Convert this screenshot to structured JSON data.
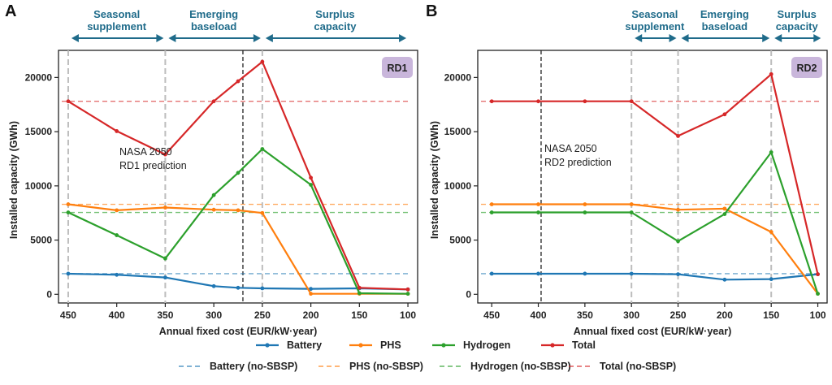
{
  "legend": [
    {
      "key": "battery",
      "label": "Battery"
    },
    {
      "key": "phs",
      "label": "PHS"
    },
    {
      "key": "hydrogen",
      "label": "Hydrogen"
    },
    {
      "key": "total",
      "label": "Total"
    },
    {
      "key": "battery_ref",
      "label": "Battery (no-SBSP)"
    },
    {
      "key": "phs_ref",
      "label": "PHS (no-SBSP)"
    },
    {
      "key": "hydrogen_ref",
      "label": "Hydrogen (no-SBSP)"
    },
    {
      "key": "total_ref",
      "label": "Total (no-SBSP)"
    }
  ],
  "colors": {
    "battery": "#1f77b4",
    "phs": "#ff7f0e",
    "hydrogen": "#2ca02c",
    "total": "#d62728",
    "phase": "#1f6b8a",
    "badge": "#c9b6db"
  },
  "chart_data": [
    {
      "type": "line",
      "panel": "A",
      "badge": "RD1",
      "xlabel": "Annual fixed cost (EUR/kW·year)",
      "ylabel": "Installed capacity (GWh)",
      "x": [
        450,
        400,
        350,
        300,
        275,
        250,
        200,
        150,
        100
      ],
      "xlim": [
        460,
        90
      ],
      "ylim": [
        -800,
        22500
      ],
      "xticks": [
        450,
        400,
        350,
        300,
        250,
        200,
        150,
        100
      ],
      "yticks": [
        0,
        5000,
        10000,
        15000,
        20000
      ],
      "grey_lines": [
        450,
        350,
        250
      ],
      "prediction": {
        "x": 270,
        "label": [
          "NASA 2050",
          "RD1 prediction"
        ]
      },
      "phases": [
        {
          "label": [
            "Seasonal",
            "supplement"
          ],
          "from": 450,
          "to": 350
        },
        {
          "label": [
            "Emerging",
            "baseload"
          ],
          "from": 350,
          "to": 250
        },
        {
          "label": [
            "Surplus",
            "capacity"
          ],
          "from": 250,
          "to": 100
        }
      ],
      "series": [
        {
          "key": "battery",
          "name": "Battery",
          "values": [
            1900,
            1800,
            1550,
            750,
            600,
            550,
            500,
            550,
            450
          ]
        },
        {
          "key": "phs",
          "name": "PHS",
          "values": [
            8300,
            7750,
            8000,
            7800,
            7750,
            7500,
            50,
            50,
            50
          ]
        },
        {
          "key": "hydrogen",
          "name": "Hydrogen",
          "values": [
            7550,
            5450,
            3300,
            9150,
            11200,
            13400,
            10100,
            100,
            50
          ]
        },
        {
          "key": "total",
          "name": "Total",
          "values": [
            17800,
            15050,
            12900,
            17800,
            19650,
            21450,
            10750,
            600,
            450
          ]
        }
      ],
      "reference": {
        "battery": 1900,
        "phs": 8300,
        "hydrogen": 7550,
        "total": 17800
      }
    },
    {
      "type": "line",
      "panel": "B",
      "badge": "RD2",
      "xlabel": "Annual fixed cost (EUR/kW·year)",
      "ylabel": "Installed capacity (GWh)",
      "x": [
        450,
        400,
        350,
        300,
        250,
        200,
        150,
        100
      ],
      "xlim": [
        465,
        90
      ],
      "ylim": [
        -800,
        22500
      ],
      "xticks": [
        450,
        400,
        350,
        300,
        250,
        200,
        150,
        100
      ],
      "yticks": [
        0,
        5000,
        10000,
        15000,
        20000
      ],
      "grey_lines": [
        300,
        250,
        150
      ],
      "prediction": {
        "x": 397,
        "label": [
          "NASA 2050",
          "RD2 prediction"
        ]
      },
      "phases": [
        {
          "label": [
            "Seasonal",
            "supplement"
          ],
          "from": 300,
          "to": 250
        },
        {
          "label": [
            "Emerging",
            "baseload"
          ],
          "from": 250,
          "to": 150
        },
        {
          "label": [
            "Surplus",
            "capacity"
          ],
          "from": 150,
          "to": 95
        }
      ],
      "series": [
        {
          "key": "battery",
          "name": "Battery",
          "values": [
            1900,
            1900,
            1900,
            1900,
            1850,
            1350,
            1400,
            1850
          ]
        },
        {
          "key": "phs",
          "name": "PHS",
          "values": [
            8300,
            8300,
            8300,
            8300,
            7800,
            7900,
            5750,
            50
          ]
        },
        {
          "key": "hydrogen",
          "name": "Hydrogen",
          "values": [
            7550,
            7550,
            7550,
            7550,
            4900,
            7400,
            13100,
            50
          ]
        },
        {
          "key": "total",
          "name": "Total",
          "values": [
            17800,
            17800,
            17800,
            17800,
            14600,
            16600,
            20300,
            1850
          ]
        }
      ],
      "reference": {
        "battery": 1900,
        "phs": 8300,
        "hydrogen": 7550,
        "total": 17800
      }
    }
  ]
}
